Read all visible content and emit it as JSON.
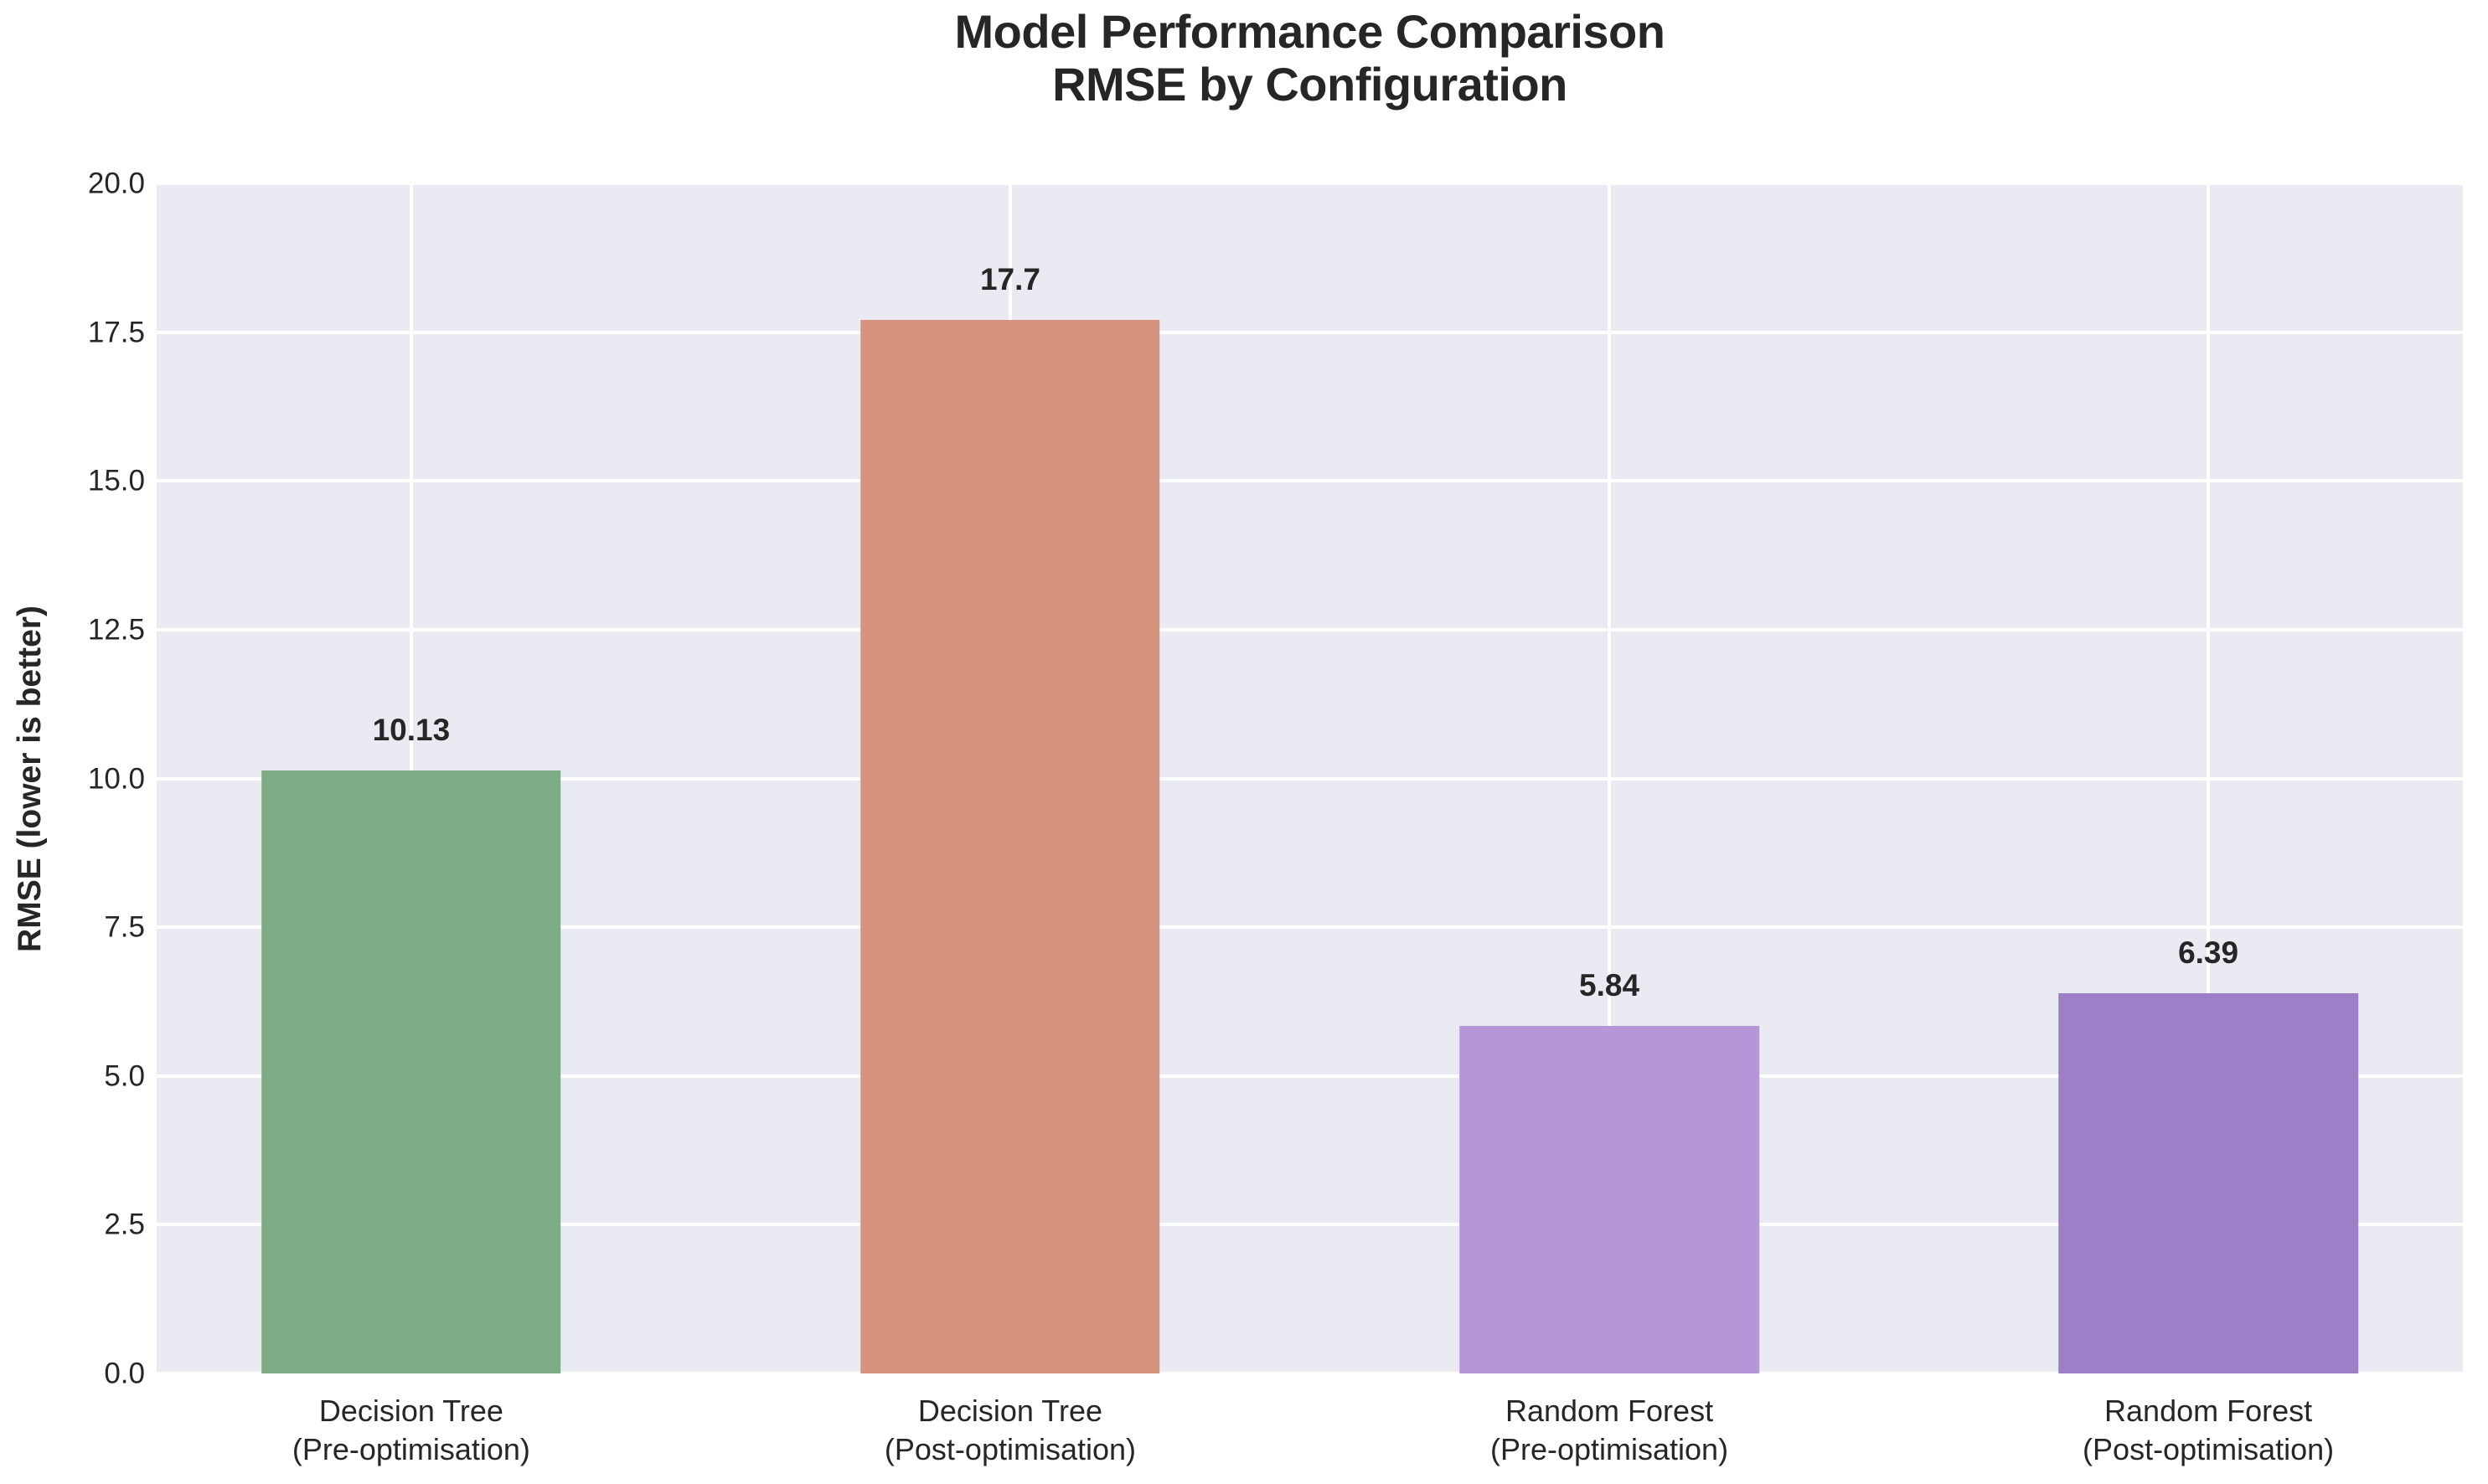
{
  "chart_data": {
    "type": "bar",
    "title_lines": [
      "Model Performance Comparison",
      "RMSE by Configuration"
    ],
    "ylabel": "RMSE (lower is better)",
    "categories": [
      [
        "Decision Tree",
        "(Pre-optimisation)"
      ],
      [
        "Decision Tree",
        "(Post-optimisation)"
      ],
      [
        "Random Forest",
        "(Pre-optimisation)"
      ],
      [
        "Random Forest",
        "(Post-optimisation)"
      ]
    ],
    "values": [
      10.13,
      17.7,
      5.84,
      6.39
    ],
    "value_labels": [
      "10.13",
      "17.7",
      "5.84",
      "6.39"
    ],
    "bar_colors": [
      "#7DAC85",
      "#D6947E",
      "#B795D9",
      "#9F7EC8"
    ],
    "ylim": [
      0,
      20
    ],
    "yticks": [
      0.0,
      2.5,
      5.0,
      7.5,
      10.0,
      12.5,
      15.0,
      17.5,
      20.0
    ],
    "ytick_labels": [
      "0.0",
      "2.5",
      "5.0",
      "7.5",
      "10.0",
      "12.5",
      "15.0",
      "17.5",
      "20.0"
    ],
    "grid": true,
    "legend": "none",
    "plot_bg_color": "#EAEAF2",
    "grid_color": "#FFFFFF",
    "text_color": "#262626"
  }
}
